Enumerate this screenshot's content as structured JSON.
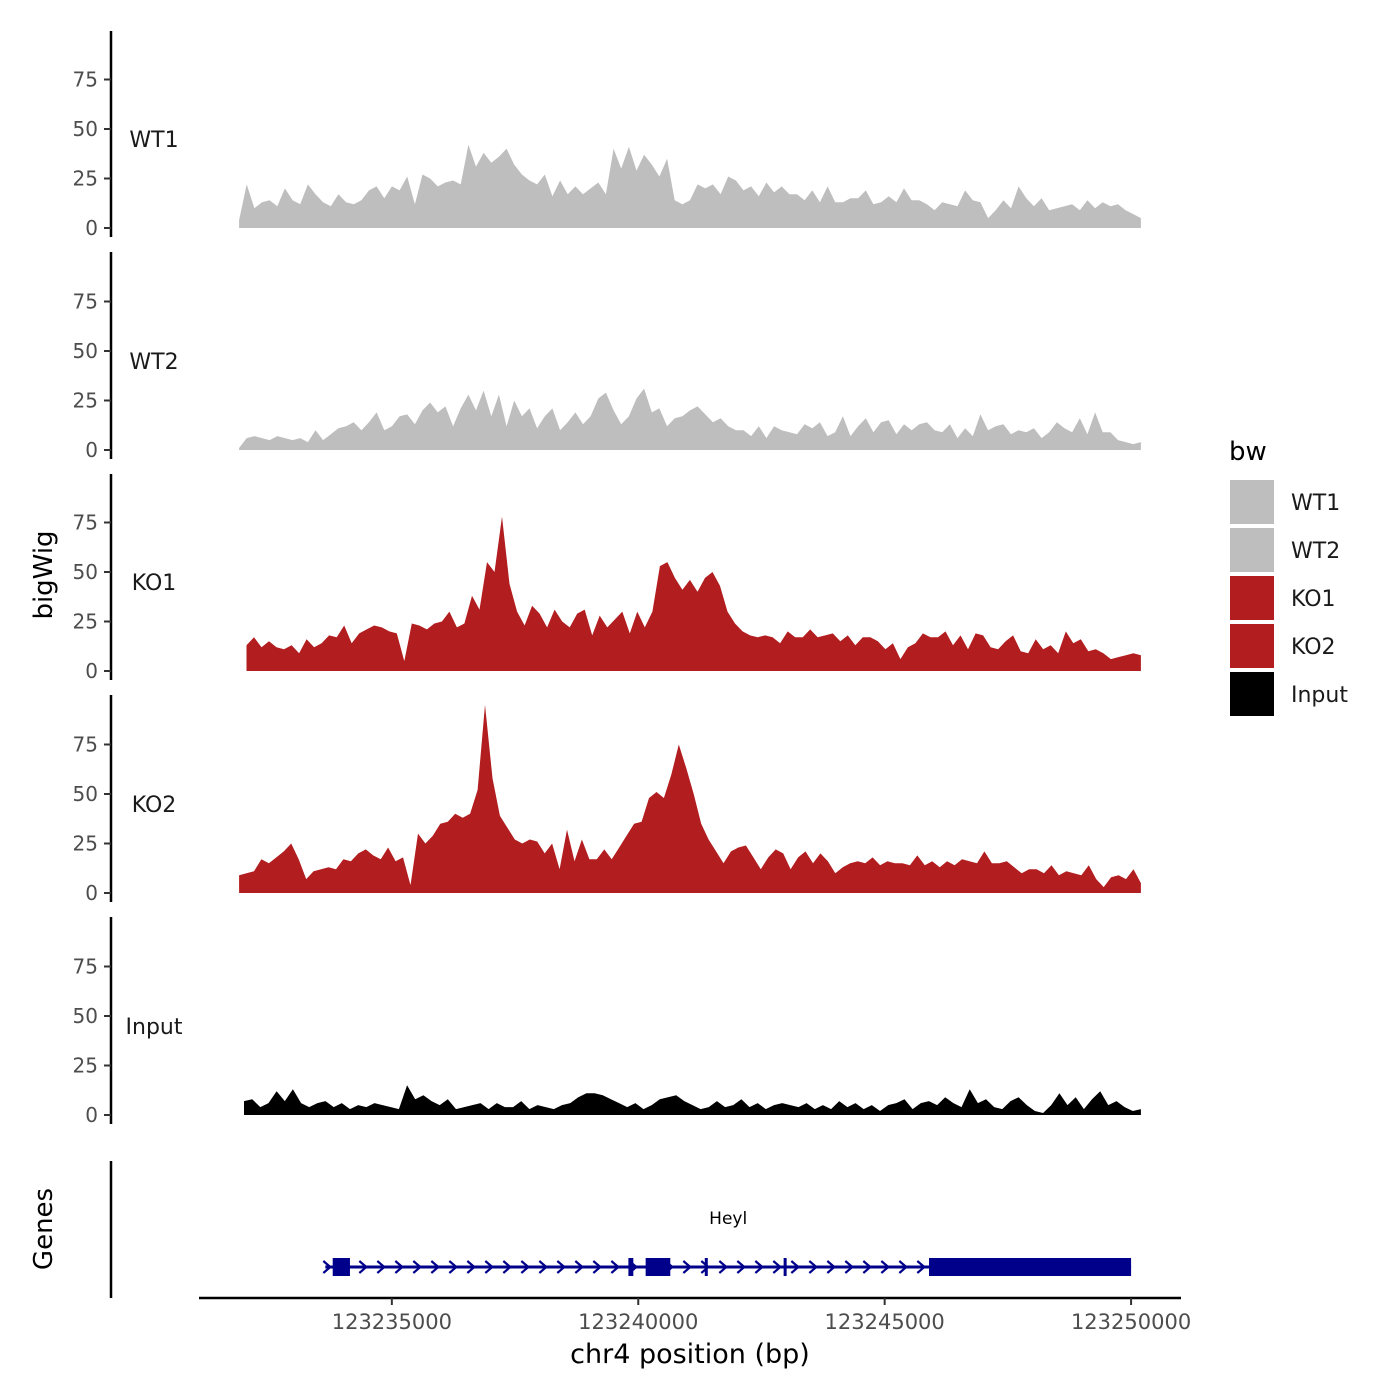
{
  "chart_data": {
    "type": "area",
    "title": "",
    "y_axis_title": "bigWig",
    "genes_axis_title": "Genes",
    "xlabel": "chr4 position (bp)",
    "xlim": [
      123229200,
      123251100
    ],
    "x_ticks": [
      123235000,
      123240000,
      123245000,
      123250000
    ],
    "x_tick_labels": [
      "123235000",
      "123240000",
      "123245000",
      "123250000"
    ],
    "ylim": [
      0,
      98
    ],
    "y_ticks": [
      0,
      25,
      50,
      75
    ],
    "y_tick_labels": [
      "0",
      "25",
      "50",
      "75"
    ],
    "legend": {
      "title": "bw",
      "position": "right",
      "entries": [
        {
          "label": "WT1",
          "color": "#bebebe"
        },
        {
          "label": "WT2",
          "color": "#bebebe"
        },
        {
          "label": "KO1",
          "color": "#b21d1f"
        },
        {
          "label": "KO2",
          "color": "#b21d1f"
        },
        {
          "label": "Input",
          "color": "#000000"
        }
      ]
    },
    "series": [
      {
        "name": "WT1",
        "color": "#bebebe",
        "x_start": 123231900,
        "x_end": 123250200,
        "values": [
          4,
          22,
          10,
          13,
          14,
          11,
          20,
          14,
          12,
          22,
          17,
          13,
          11,
          17,
          13,
          12,
          14,
          19,
          21,
          15,
          21,
          19,
          26,
          12,
          27,
          25,
          21,
          23,
          24,
          22,
          42,
          31,
          38,
          33,
          36,
          40,
          32,
          27,
          24,
          22,
          27,
          16,
          24,
          17,
          21,
          17,
          20,
          23,
          17,
          40,
          30,
          41,
          29,
          37,
          32,
          26,
          35,
          14,
          12,
          14,
          22,
          20,
          22,
          17,
          26,
          24,
          19,
          21,
          16,
          23,
          18,
          21,
          17,
          17,
          14,
          19,
          13,
          21,
          13,
          13,
          15,
          15,
          19,
          12,
          13,
          16,
          13,
          20,
          14,
          14,
          12,
          9,
          13,
          12,
          11,
          19,
          14,
          13,
          5,
          9,
          14,
          10,
          21,
          15,
          11,
          15,
          9,
          10,
          11,
          12,
          9,
          14,
          10,
          13,
          11,
          12,
          9,
          7,
          5
        ]
      },
      {
        "name": "WT2",
        "color": "#bebebe",
        "x_start": 123231900,
        "x_end": 123250200,
        "values": [
          1,
          6,
          7,
          6,
          5,
          7,
          6,
          5,
          6,
          4,
          10,
          5,
          8,
          11,
          12,
          14,
          10,
          14,
          19,
          10,
          12,
          17,
          18,
          13,
          20,
          24,
          19,
          22,
          12,
          21,
          28,
          20,
          30,
          17,
          28,
          12,
          25,
          17,
          21,
          11,
          17,
          21,
          10,
          14,
          19,
          13,
          17,
          26,
          29,
          20,
          13,
          17,
          26,
          31,
          19,
          21,
          12,
          16,
          17,
          20,
          22,
          18,
          14,
          16,
          12,
          10,
          10,
          7,
          12,
          6,
          12,
          10,
          9,
          8,
          13,
          11,
          14,
          7,
          9,
          17,
          7,
          12,
          16,
          9,
          14,
          15,
          8,
          13,
          10,
          13,
          14,
          10,
          9,
          13,
          6,
          11,
          7,
          18,
          10,
          12,
          13,
          8,
          10,
          9,
          11,
          6,
          9,
          14,
          11,
          9,
          16,
          8,
          19,
          9,
          9,
          5,
          4,
          3,
          4
        ]
      },
      {
        "name": "KO1",
        "color": "#b21d1f",
        "x_start": 123232050,
        "x_end": 123250200,
        "values": [
          13,
          17,
          12,
          15,
          12,
          11,
          13,
          9,
          16,
          12,
          14,
          18,
          17,
          23,
          14,
          19,
          21,
          23,
          22,
          20,
          19,
          5,
          24,
          23,
          21,
          24,
          25,
          30,
          22,
          24,
          38,
          31,
          55,
          50,
          78,
          44,
          30,
          23,
          33,
          29,
          22,
          31,
          25,
          22,
          29,
          31,
          18,
          28,
          22,
          26,
          30,
          19,
          30,
          22,
          30,
          53,
          55,
          47,
          41,
          46,
          40,
          47,
          50,
          43,
          30,
          24,
          20,
          18,
          17,
          18,
          17,
          14,
          20,
          17,
          17,
          21,
          17,
          18,
          19,
          15,
          18,
          13,
          17,
          17,
          15,
          11,
          14,
          6,
          12,
          14,
          19,
          17,
          17,
          20,
          13,
          18,
          11,
          19,
          18,
          12,
          11,
          15,
          18,
          10,
          9,
          16,
          11,
          13,
          9,
          20,
          14,
          16,
          10,
          11,
          9,
          6,
          7,
          8,
          9,
          8
        ]
      },
      {
        "name": "KO2",
        "color": "#b21d1f",
        "x_start": 123231900,
        "x_end": 123250200,
        "values": [
          9,
          10,
          11,
          17,
          15,
          18,
          21,
          25,
          17,
          7,
          11,
          12,
          13,
          12,
          17,
          16,
          20,
          22,
          19,
          17,
          23,
          16,
          18,
          4,
          30,
          25,
          29,
          35,
          36,
          40,
          38,
          40,
          52,
          95,
          58,
          39,
          33,
          27,
          25,
          27,
          26,
          20,
          25,
          12,
          32,
          16,
          27,
          17,
          17,
          22,
          17,
          23,
          29,
          35,
          36,
          48,
          51,
          48,
          60,
          75,
          63,
          50,
          35,
          27,
          21,
          15,
          21,
          23,
          24,
          18,
          12,
          18,
          22,
          20,
          12,
          18,
          21,
          15,
          20,
          16,
          10,
          13,
          15,
          16,
          15,
          18,
          14,
          16,
          15,
          15,
          14,
          19,
          14,
          16,
          13,
          16,
          14,
          17,
          16,
          15,
          21,
          15,
          15,
          16,
          13,
          10,
          12,
          12,
          10,
          14,
          9,
          11,
          10,
          9,
          14,
          7,
          3,
          8,
          9,
          7,
          12,
          5
        ]
      },
      {
        "name": "Input",
        "color": "#000000",
        "x_start": 123232000,
        "x_end": 123250200,
        "values": [
          7,
          8,
          4,
          6,
          12,
          7,
          13,
          6,
          4,
          6,
          7,
          4,
          6,
          3,
          5,
          4,
          6,
          5,
          4,
          3,
          15,
          8,
          10,
          7,
          5,
          8,
          3,
          4,
          5,
          6,
          3,
          6,
          4,
          4,
          7,
          3,
          5,
          4,
          3,
          5,
          6,
          9,
          11,
          11,
          10,
          8,
          6,
          4,
          6,
          3,
          5,
          8,
          9,
          10,
          7,
          5,
          3,
          4,
          7,
          4,
          5,
          8,
          4,
          6,
          3,
          5,
          6,
          5,
          4,
          6,
          3,
          5,
          3,
          7,
          4,
          6,
          3,
          5,
          2,
          5,
          6,
          8,
          3,
          6,
          7,
          5,
          9,
          6,
          4,
          13,
          6,
          8,
          4,
          3,
          7,
          9,
          5,
          2,
          1,
          5,
          11,
          5,
          9,
          3,
          8,
          12,
          5,
          7,
          4,
          2,
          3
        ]
      }
    ],
    "genes": [
      {
        "name": "Heyl",
        "color": "#00008b",
        "strand": "+",
        "start": 123233650,
        "end": 123250000,
        "exons": [
          [
            123233800,
            123234150
          ],
          [
            123239800,
            123239900
          ],
          [
            123240150,
            123240650
          ],
          [
            123241350,
            123241400
          ],
          [
            123242950,
            123243000
          ],
          [
            123245900,
            123250000
          ]
        ]
      }
    ]
  }
}
